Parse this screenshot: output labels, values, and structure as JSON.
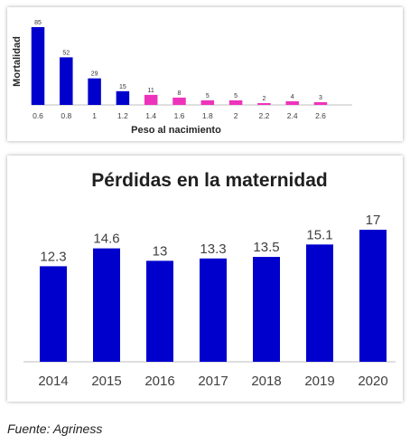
{
  "colors": {
    "primary": "#0000cd",
    "highlight": "#ee33bb",
    "axis": "#bfbfbf",
    "text": "#404040"
  },
  "source": "Fuente: Agriness",
  "chart_data": [
    {
      "type": "bar",
      "categories": [
        "0.6",
        "0.8",
        "1",
        "1.2",
        "1.4",
        "1.6",
        "1.8",
        "2",
        "2.2",
        "2.4",
        "2.6"
      ],
      "values": [
        85,
        52,
        29,
        15,
        11,
        8,
        5,
        5,
        2,
        4,
        3
      ],
      "bar_colors": [
        "#0000cd",
        "#0000cd",
        "#0000cd",
        "#0000cd",
        "#ee33bb",
        "#ee33bb",
        "#ee33bb",
        "#ee33bb",
        "#ee33bb",
        "#ee33bb",
        "#ee33bb"
      ],
      "title": "",
      "xlabel": "Peso al nacimiento",
      "ylabel": "Mortalidad",
      "ylim": [
        0,
        85
      ],
      "grid": false
    },
    {
      "type": "bar",
      "categories": [
        "2014",
        "2015",
        "2016",
        "2017",
        "2018",
        "2019",
        "2020"
      ],
      "values": [
        12.3,
        14.6,
        13,
        13.3,
        13.5,
        15.1,
        17
      ],
      "value_labels": [
        "12.3",
        "14.6",
        "13",
        "13.3",
        "13.5",
        "15.1",
        "17"
      ],
      "title": "Pérdidas en la maternidad",
      "xlabel": "",
      "ylabel": "",
      "ylim": [
        0,
        17
      ],
      "grid": false
    }
  ]
}
